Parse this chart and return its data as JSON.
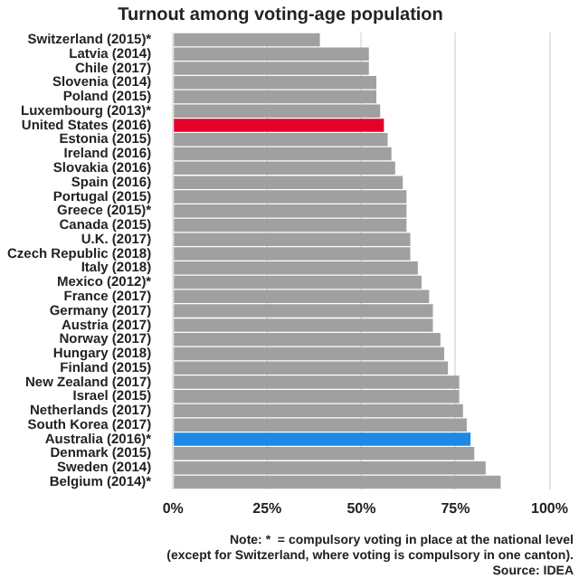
{
  "chart_data": {
    "type": "bar",
    "orientation": "horizontal",
    "title": "Turnout among voting-age population",
    "categories": [
      "Switzerland (2015)*",
      "Latvia (2014)",
      "Chile (2017)",
      "Slovenia (2014)",
      "Poland (2015)",
      "Luxembourg (2013)*",
      "United States (2016)",
      "Estonia (2015)",
      "Ireland (2016)",
      "Slovakia (2016)",
      "Spain (2016)",
      "Portugal (2015)",
      "Greece (2015)*",
      "Canada (2015)",
      "U.K. (2017)",
      "Czech Republic (2018)",
      "Italy (2018)",
      "Mexico (2012)*",
      "France (2017)",
      "Germany (2017)",
      "Austria (2017)",
      "Norway (2017)",
      "Hungary (2018)",
      "Finland (2015)",
      "New Zealand (2017)",
      "Israel (2015)",
      "Netherlands (2017)",
      "South Korea (2017)",
      "Australia (2016)*",
      "Denmark (2015)",
      "Sweden (2014)",
      "Belgium (2014)*"
    ],
    "values": [
      39,
      52,
      52,
      54,
      54,
      55,
      56,
      57,
      58,
      59,
      61,
      62,
      62,
      62,
      63,
      63,
      65,
      66,
      68,
      69,
      69,
      71,
      72,
      73,
      76,
      76,
      77,
      78,
      79,
      80,
      83,
      87
    ],
    "colors": [
      "#a0a0a0",
      "#a0a0a0",
      "#a0a0a0",
      "#a0a0a0",
      "#a0a0a0",
      "#a0a0a0",
      "#e4002b",
      "#a0a0a0",
      "#a0a0a0",
      "#a0a0a0",
      "#a0a0a0",
      "#a0a0a0",
      "#a0a0a0",
      "#a0a0a0",
      "#a0a0a0",
      "#a0a0a0",
      "#a0a0a0",
      "#a0a0a0",
      "#a0a0a0",
      "#a0a0a0",
      "#a0a0a0",
      "#a0a0a0",
      "#a0a0a0",
      "#a0a0a0",
      "#a0a0a0",
      "#a0a0a0",
      "#a0a0a0",
      "#a0a0a0",
      "#1e88e5",
      "#a0a0a0",
      "#a0a0a0",
      "#a0a0a0"
    ],
    "xlim": [
      0,
      100
    ],
    "xticks": [
      {
        "value": 0,
        "label": "0%"
      },
      {
        "value": 25,
        "label": "25%"
      },
      {
        "value": 50,
        "label": "50%"
      },
      {
        "value": 75,
        "label": "75%"
      },
      {
        "value": 100,
        "label": "100%"
      }
    ],
    "grid": "x",
    "annotations": [
      "Note: *  = compulsory voting in place at the national level",
      "(except for Switzerland, where voting is compulsory in one canton).",
      "Source: IDEA"
    ]
  }
}
